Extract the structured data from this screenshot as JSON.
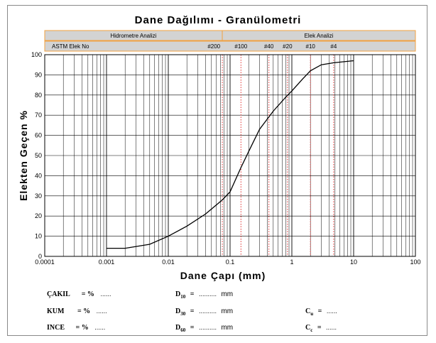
{
  "chart_data": {
    "type": "line",
    "title": "Dane Dağılımı - Granülometri",
    "xlabel": "Dane Çapı (mm)",
    "ylabel": "Elekten Geçen %",
    "xscale": "log",
    "xlim": [
      0.0001,
      100
    ],
    "ylim": [
      0,
      100
    ],
    "x_ticks": [
      "0.0001",
      "0.001",
      "0.01",
      "0.1",
      "1",
      "10",
      "100"
    ],
    "y_ticks": [
      "0",
      "10",
      "20",
      "30",
      "40",
      "50",
      "60",
      "70",
      "80",
      "90",
      "100"
    ],
    "grid": true,
    "header": {
      "left_section": "Hidrometre Analizi",
      "right_section": "Elek Analizi",
      "astm_label": "ASTM Elek No",
      "sieves": [
        {
          "label": "#200",
          "size_mm": 0.075
        },
        {
          "label": "#100",
          "size_mm": 0.15
        },
        {
          "label": "#40",
          "size_mm": 0.425
        },
        {
          "label": "#20",
          "size_mm": 0.85
        },
        {
          "label": "#10",
          "size_mm": 2.0
        },
        {
          "label": "#4",
          "size_mm": 4.75
        }
      ]
    },
    "series": [
      {
        "x": [
          0.001,
          0.002,
          0.005,
          0.01,
          0.02,
          0.04,
          0.075,
          0.1,
          0.15,
          0.2,
          0.3,
          0.5,
          0.8,
          1,
          1.5,
          2,
          3,
          4.75,
          7,
          10
        ],
        "y": [
          4,
          4,
          6,
          10,
          15,
          21,
          28,
          32,
          44,
          52,
          63,
          72,
          79,
          82,
          88,
          92,
          95,
          96,
          96.5,
          97
        ]
      }
    ]
  },
  "results": {
    "cakil": {
      "label": "ÇAKIL",
      "eq": "= %",
      "value": "......"
    },
    "kum": {
      "label": "KUM",
      "eq": "= %",
      "value": "......"
    },
    "ince": {
      "label": "INCE",
      "eq": "= %",
      "value": "......"
    },
    "d10": {
      "label": "D",
      "sub": "10",
      "eq": "=",
      "value": "..........",
      "unit": "mm"
    },
    "d30": {
      "label": "D",
      "sub": "30",
      "eq": "=",
      "value": "..........",
      "unit": "mm"
    },
    "d60": {
      "label": "D",
      "sub": "60",
      "eq": "=",
      "value": "..........",
      "unit": "mm"
    },
    "cu": {
      "label": "C",
      "sub": "u",
      "eq": "=",
      "value": "......"
    },
    "cc": {
      "label": "C",
      "sub": "c",
      "eq": "=",
      "value": "......"
    }
  },
  "colors": {
    "header_fill": "#d3d3d3",
    "header_border": "#f0a040",
    "sieve_line": "#e03030",
    "grid": "#000000",
    "curve": "#000000"
  }
}
